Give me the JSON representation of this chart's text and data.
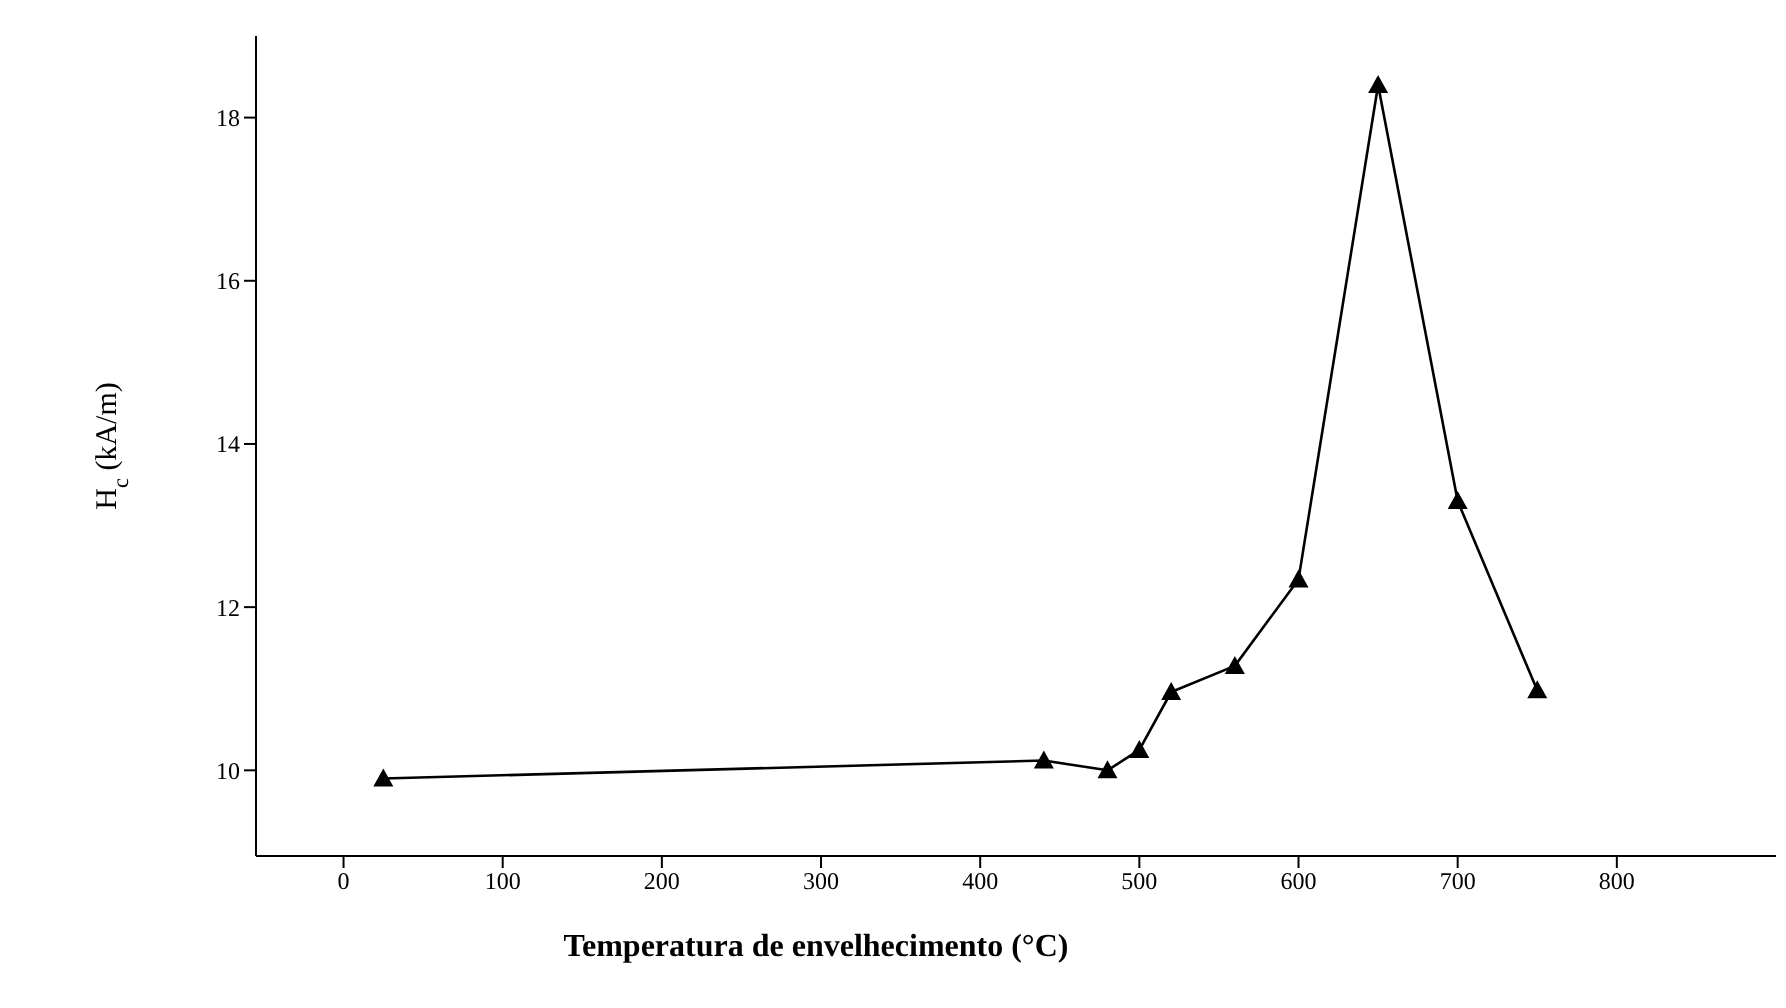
{
  "chart_data": {
    "type": "line",
    "xlabel": "Temperatura de envelhecimento (°C)",
    "ylabel": "H$_{c}$ (kA/m)",
    "x": [
      25,
      440,
      480,
      500,
      520,
      560,
      600,
      650,
      700,
      750
    ],
    "series": [
      {
        "color": "#000000",
        "values": [
          9.9,
          10.12,
          10.0,
          10.25,
          10.96,
          11.28,
          12.34,
          18.4,
          13.3,
          10.98
        ]
      }
    ],
    "xlim": [
      -55,
      900
    ],
    "xticks": [
      0,
      100,
      200,
      300,
      400,
      500,
      600,
      700,
      800
    ],
    "ylim": [
      8.95,
      19
    ],
    "yticks": [
      10,
      12,
      14,
      16,
      18
    ],
    "grid": false,
    "legend": false,
    "marker": "triangle",
    "line_style": "solid"
  }
}
